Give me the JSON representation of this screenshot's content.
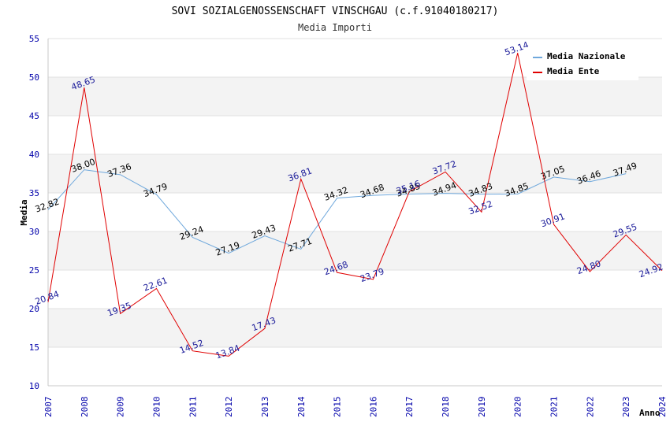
{
  "chart_data": {
    "type": "line",
    "title": "SOVI SOZIALGENOSSENSCHAFT VINSCHGAU (c.f.91040180217)",
    "subtitle": "Media Importi",
    "xlabel": "Anno",
    "ylabel": "Media",
    "ylim": [
      10,
      55
    ],
    "yticks": [
      10,
      15,
      20,
      25,
      30,
      35,
      40,
      45,
      50,
      55
    ],
    "x": [
      "2007",
      "2008",
      "2009",
      "2010",
      "2011",
      "2012",
      "2013",
      "2014",
      "2015",
      "2016",
      "2017",
      "2018",
      "2019",
      "2020",
      "2021",
      "2022",
      "2023",
      "2024"
    ],
    "grid": true,
    "legend_position": "top-right",
    "series": [
      {
        "name": "Media Nazionale",
        "color": "#6fa8dc",
        "values": [
          32.82,
          38.0,
          37.36,
          34.79,
          29.24,
          27.19,
          29.43,
          27.71,
          34.32,
          34.68,
          34.85,
          34.94,
          34.83,
          34.85,
          37.05,
          36.46,
          37.49,
          null
        ],
        "labels": [
          "32.82",
          "38.00",
          "37.36",
          "34.79",
          "29.24",
          "27.19",
          "29.43",
          "27.71",
          "34.32",
          "34.68",
          "34.85",
          "34.94",
          "34.83",
          "34.85",
          "37.05",
          "36.46",
          "37.49",
          ""
        ]
      },
      {
        "name": "Media Ente",
        "color": "#e00000",
        "values": [
          20.84,
          48.65,
          19.35,
          22.61,
          14.52,
          13.84,
          17.43,
          36.81,
          24.68,
          23.79,
          35.16,
          37.72,
          32.52,
          53.14,
          30.91,
          24.8,
          29.55,
          24.92
        ],
        "labels": [
          "20.84",
          "48.65",
          "19.35",
          "22.61",
          "14.52",
          "13.84",
          "17.43",
          "36.81",
          "24.68",
          "23.79",
          "35.16",
          "37.72",
          "32.52",
          "53.14",
          "30.91",
          "24.80",
          "29.55",
          "24.92"
        ]
      }
    ]
  }
}
